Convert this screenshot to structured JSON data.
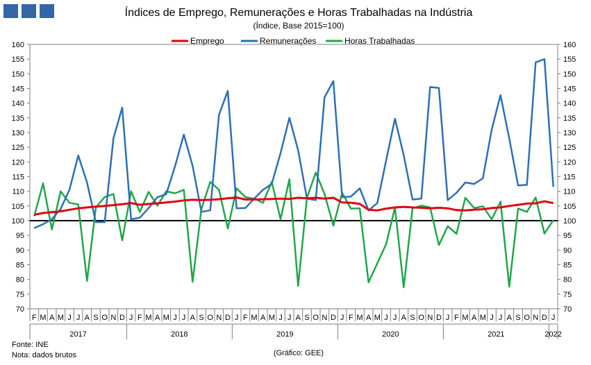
{
  "header": {
    "logo_colors": [
      "#3366a8",
      "#3366a8",
      "#3366a8"
    ]
  },
  "footer": {
    "source": "Fonte: INE",
    "note": "Nota: dados brutos",
    "credit": "(Gráfico: GEE)"
  },
  "chart_data": {
    "type": "line",
    "title": "Índices de Emprego, Remunerações e Horas Trabalhadas na Indústria",
    "subtitle": "(Índice, Base 2015=100)",
    "legend_position": "top-center",
    "grid": false,
    "ylim": [
      70,
      160
    ],
    "yticks": [
      70,
      75,
      80,
      85,
      90,
      95,
      100,
      105,
      110,
      115,
      120,
      125,
      130,
      135,
      140,
      145,
      150,
      155,
      160
    ],
    "secondary_y_axis_mirrors_primary": true,
    "reference_line": {
      "value": 100,
      "color": "#000000"
    },
    "x": [
      "F",
      "M",
      "A",
      "M",
      "J",
      "J",
      "A",
      "S",
      "O",
      "N",
      "D",
      "J",
      "F",
      "M",
      "A",
      "M",
      "J",
      "J",
      "A",
      "S",
      "O",
      "N",
      "D",
      "J",
      "F",
      "M",
      "A",
      "M",
      "J",
      "J",
      "A",
      "S",
      "O",
      "N",
      "D",
      "J",
      "F",
      "M",
      "A",
      "M",
      "J",
      "J",
      "A",
      "S",
      "O",
      "N",
      "D",
      "J",
      "F",
      "M",
      "A",
      "M",
      "J",
      "J",
      "A",
      "S",
      "O",
      "N",
      "D",
      "J"
    ],
    "years": [
      {
        "label": "2017",
        "start": 0,
        "end": 10
      },
      {
        "label": "2018",
        "start": 11,
        "end": 22
      },
      {
        "label": "2019",
        "start": 23,
        "end": 34
      },
      {
        "label": "2020",
        "start": 35,
        "end": 46
      },
      {
        "label": "2021",
        "start": 47,
        "end": 58
      },
      {
        "label": "2022",
        "start": 59,
        "end": 59
      }
    ],
    "series": [
      {
        "name": "Emprego",
        "color": "#e3000f",
        "values": [
          102.0,
          102.6,
          102.9,
          103.2,
          103.7,
          104.2,
          104.5,
          104.8,
          105.0,
          105.3,
          105.6,
          106.0,
          105.4,
          105.7,
          105.9,
          106.2,
          106.5,
          106.9,
          107.1,
          107.0,
          107.1,
          107.3,
          107.6,
          107.9,
          107.2,
          107.2,
          107.3,
          107.4,
          107.5,
          107.4,
          107.8,
          107.6,
          107.8,
          107.5,
          107.8,
          106.2,
          106.1,
          105.7,
          103.7,
          103.5,
          104.1,
          104.5,
          104.7,
          104.5,
          104.4,
          104.2,
          104.4,
          104.2,
          103.6,
          103.5,
          103.7,
          103.9,
          104.3,
          104.5,
          105.0,
          105.4,
          105.8,
          105.9,
          106.6,
          106.0
        ]
      },
      {
        "name": "Remunerações",
        "color": "#2d6fb4",
        "values": [
          97.5,
          98.8,
          100.5,
          104.0,
          110.5,
          122.2,
          113.0,
          99.5,
          99.5,
          128.0,
          138.5,
          100.5,
          101.0,
          104.3,
          108.0,
          109.0,
          118.5,
          129.3,
          118.7,
          103.0,
          103.5,
          136.0,
          144.2,
          104.2,
          104.3,
          107.5,
          110.5,
          112.5,
          123.0,
          135.0,
          124.0,
          107.5,
          107.0,
          142.0,
          147.5,
          108.0,
          108.2,
          111.0,
          103.5,
          106.0,
          120.5,
          134.7,
          122.3,
          107.2,
          107.5,
          145.5,
          145.2,
          107.0,
          109.5,
          113.0,
          112.5,
          114.4,
          131.0,
          142.7,
          128.0,
          112.0,
          112.2,
          153.9,
          155.0,
          111.5
        ]
      },
      {
        "name": "Horas Trabalhadas",
        "color": "#21a54a",
        "values": [
          101.5,
          112.7,
          97.0,
          110.0,
          106.1,
          105.5,
          79.5,
          104.5,
          108.0,
          109.1,
          93.3,
          110.0,
          103.0,
          109.8,
          105.1,
          110.0,
          109.3,
          110.5,
          79.2,
          104.0,
          113.2,
          110.5,
          97.3,
          111.0,
          108.0,
          107.5,
          106.1,
          113.2,
          100.5,
          114.1,
          77.8,
          107.8,
          116.4,
          109.1,
          98.3,
          109.5,
          104.1,
          104.2,
          79.0,
          85.5,
          92.0,
          104.5,
          77.3,
          104.2,
          105.1,
          104.5,
          91.7,
          98.1,
          95.5,
          107.8,
          104.3,
          104.9,
          100.5,
          106.5,
          77.5,
          104.1,
          103.0,
          107.9,
          95.6,
          100.2
        ]
      }
    ]
  }
}
